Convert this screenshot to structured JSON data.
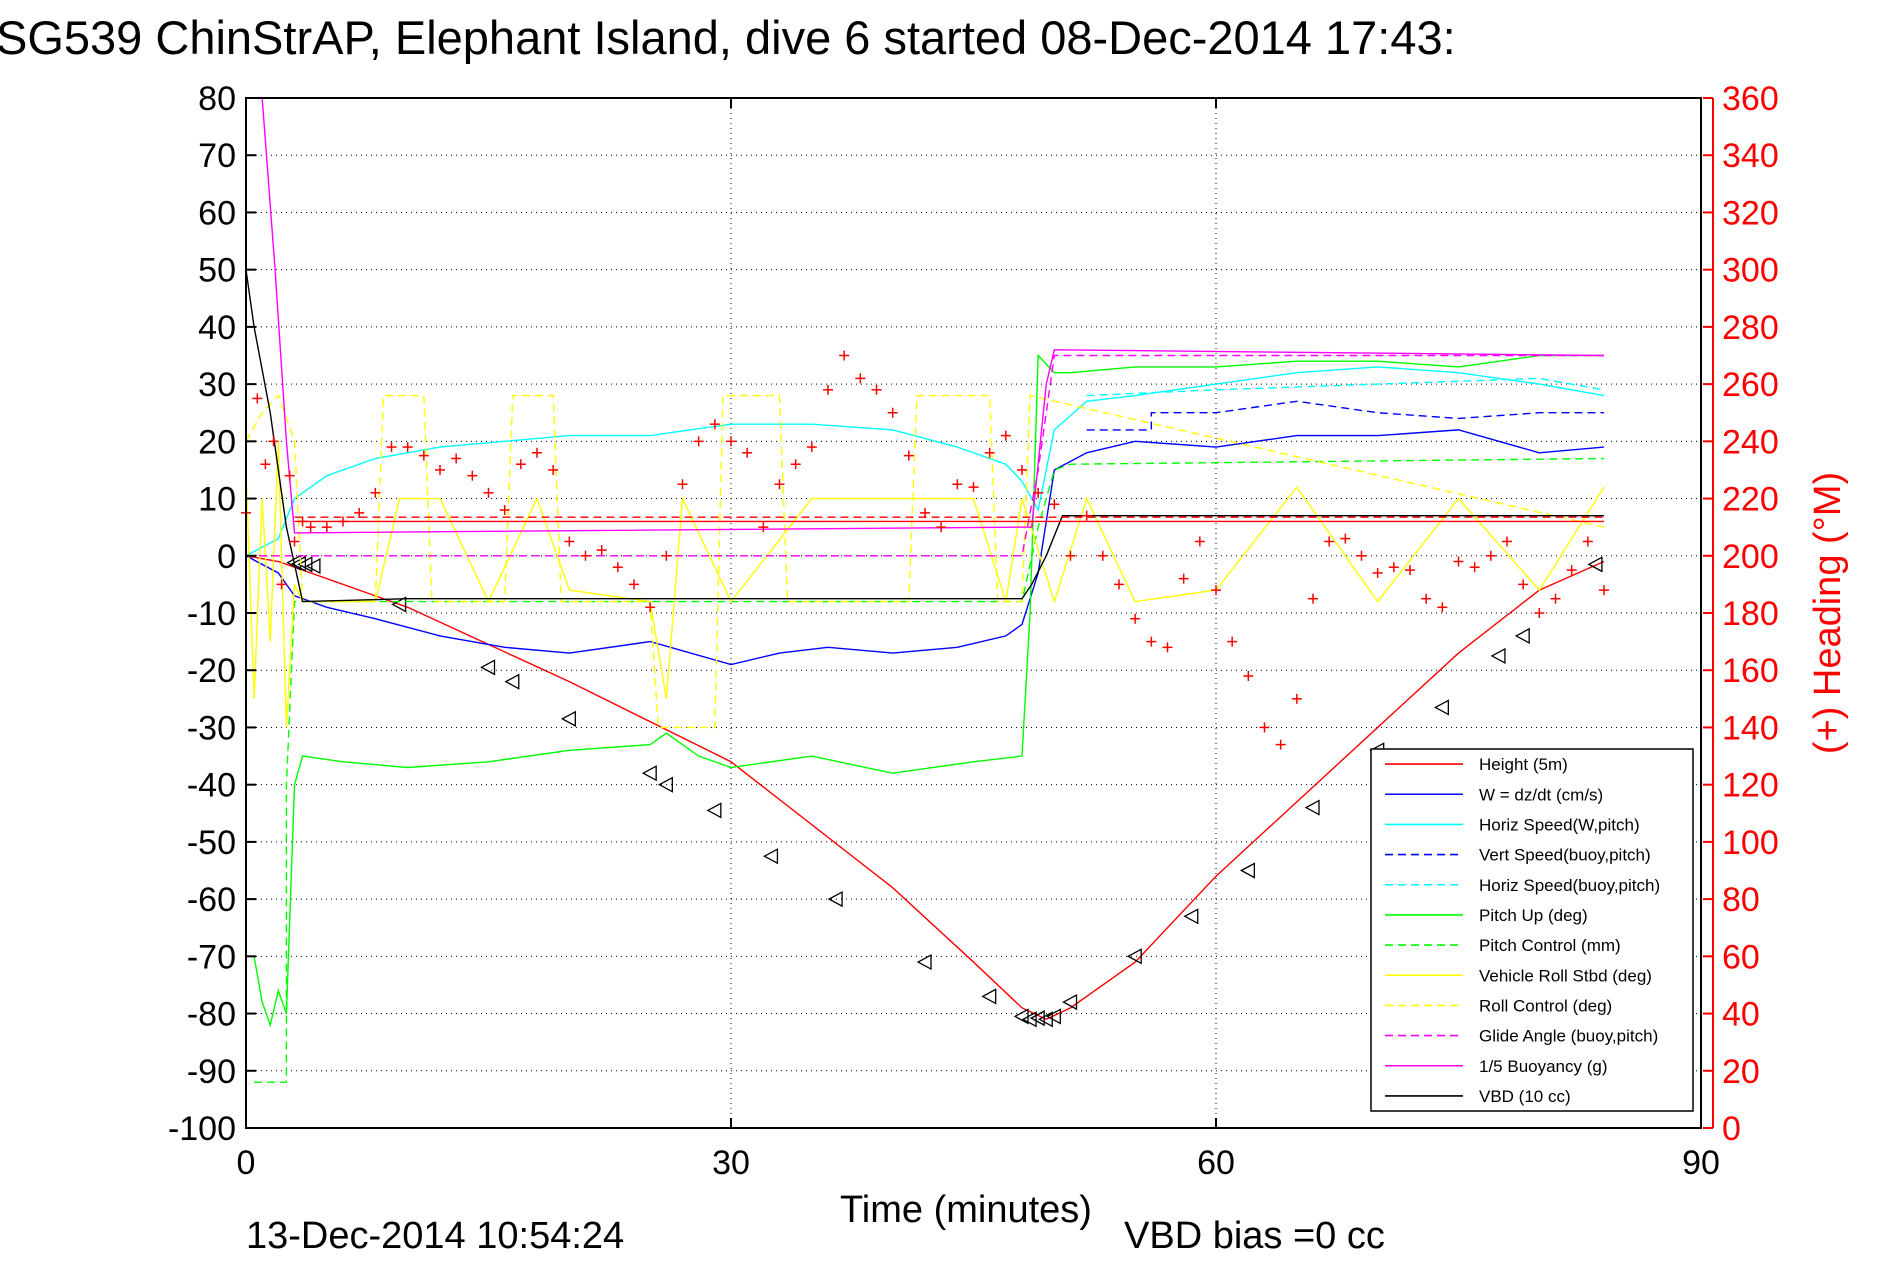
{
  "page": {
    "footer_timestamp": "13-Dec-2014 10:54:24",
    "footer_vbd": "VBD bias =0 cc"
  },
  "chart_data": {
    "type": "line",
    "title": "SG539 ChinStrAP, Elephant Island, dive 6 started 08-Dec-2014 17:43:",
    "xlabel": "Time (minutes)",
    "ylabel_right": "(+) Heading (°M)",
    "xlim": [
      0,
      90
    ],
    "xticks": [
      0,
      30,
      60,
      90
    ],
    "ylim": [
      -100,
      80
    ],
    "yticks": [
      80,
      70,
      60,
      50,
      40,
      30,
      20,
      10,
      0,
      -10,
      -20,
      -30,
      -40,
      -50,
      -60,
      -70,
      -80,
      -90,
      -100
    ],
    "y2lim": [
      0,
      360
    ],
    "y2ticks": [
      360,
      340,
      320,
      300,
      280,
      260,
      240,
      220,
      200,
      180,
      160,
      140,
      120,
      100,
      80,
      60,
      40,
      20,
      0
    ],
    "grid": true,
    "legend_position": "bottom-right",
    "legend": [
      {
        "name": "Height (5m)",
        "color": "#ff0000",
        "dash": "solid"
      },
      {
        "name": "W = dz/dt (cm/s)",
        "color": "#0000ff",
        "dash": "solid"
      },
      {
        "name": "Horiz Speed(W,pitch)",
        "color": "#00ffff",
        "dash": "solid"
      },
      {
        "name": "Vert Speed(buoy,pitch)",
        "color": "#0000ff",
        "dash": "dashed"
      },
      {
        "name": "Horiz Speed(buoy,pitch)",
        "color": "#00ffff",
        "dash": "dashed"
      },
      {
        "name": "Pitch Up (deg)",
        "color": "#00ff00",
        "dash": "solid"
      },
      {
        "name": "Pitch Control (mm)",
        "color": "#00ff00",
        "dash": "dashed"
      },
      {
        "name": "Vehicle Roll Stbd (deg)",
        "color": "#ffff00",
        "dash": "solid"
      },
      {
        "name": "Roll Control (deg)",
        "color": "#ffff00",
        "dash": "dashed"
      },
      {
        "name": "Glide Angle (buoy,pitch)",
        "color": "#ff00ff",
        "dash": "dashed"
      },
      {
        "name": "1/5 Buoyancy (g)",
        "color": "#ff00ff",
        "dash": "solid"
      },
      {
        "name": "VBD (10 cc)",
        "color": "#000000",
        "dash": "solid"
      }
    ],
    "series": [
      {
        "name": "Height (5m)",
        "color": "#ff0000",
        "dash": "solid",
        "x": [
          0,
          1,
          2,
          3,
          10,
          20,
          30,
          40,
          45,
          48,
          49.5,
          51,
          55,
          60,
          65,
          70,
          75,
          80,
          84
        ],
        "y": [
          0,
          -0.5,
          -1,
          -2,
          -9,
          -22,
          -36,
          -58,
          -71,
          -79,
          -81,
          -79,
          -71,
          -56,
          -43,
          -30,
          -17,
          -6,
          -1
        ]
      },
      {
        "name": "Height markers",
        "color": "#000000",
        "marker": "triangle-left",
        "x": [
          3,
          3.3,
          3.7,
          4.2,
          9.5,
          15,
          16.5,
          20,
          25,
          26,
          29,
          32.5,
          36.5,
          42,
          46,
          48,
          48.5,
          49,
          49.5,
          50,
          51,
          55,
          58.5,
          62,
          66,
          70,
          74,
          77.5,
          79,
          83.5
        ],
        "y": [
          -1.2,
          -1.4,
          -1.5,
          -1.8,
          -8.5,
          -19.5,
          -22,
          -28.5,
          -38,
          -40,
          -44.5,
          -52.5,
          -60,
          -71,
          -77,
          -80.5,
          -81,
          -80.8,
          -81,
          -80.5,
          -78,
          -70,
          -63,
          -55,
          -44,
          -34,
          -26.5,
          -17.5,
          -14,
          -1.5
        ]
      },
      {
        "name": "W = dz/dt (cm/s)",
        "color": "#0000ff",
        "dash": "solid",
        "x": [
          0,
          2,
          3,
          5,
          8,
          12,
          16,
          20,
          25,
          30,
          33,
          36,
          40,
          44,
          47,
          48,
          49,
          50,
          52,
          55,
          60,
          65,
          70,
          75,
          80,
          84
        ],
        "y": [
          0,
          -3,
          -7,
          -9,
          -11,
          -14,
          -16,
          -17,
          -15,
          -19,
          -17,
          -16,
          -17,
          -16,
          -14,
          -12,
          -3,
          15,
          18,
          20,
          19,
          21,
          21,
          22,
          18,
          19
        ]
      },
      {
        "name": "Vert Speed(buoy,pitch)",
        "color": "#0000ff",
        "dash": "dashed",
        "x": [
          52,
          56,
          56,
          60,
          65,
          70,
          75,
          80,
          84
        ],
        "y": [
          22,
          22,
          25,
          25,
          27,
          25,
          24,
          25,
          25
        ]
      },
      {
        "name": "Horiz Speed(W,pitch)",
        "color": "#00ffff",
        "dash": "solid",
        "x": [
          0,
          2,
          3,
          5,
          8,
          12,
          16,
          20,
          25,
          30,
          35,
          40,
          44,
          47,
          48,
          49,
          50,
          52,
          55,
          60,
          65,
          70,
          75,
          80,
          84
        ],
        "y": [
          0,
          3,
          10,
          14,
          17,
          19,
          20,
          21,
          21,
          23,
          23,
          22,
          19,
          16,
          13,
          8,
          22,
          27,
          28,
          30,
          32,
          33,
          32,
          30,
          28
        ]
      },
      {
        "name": "Horiz Speed(buoy,pitch)",
        "color": "#00ffff",
        "dash": "dashed",
        "x": [
          52,
          60,
          70,
          80,
          84
        ],
        "y": [
          28,
          29,
          30,
          31,
          29
        ]
      },
      {
        "name": "Pitch Up (deg)",
        "color": "#00ff00",
        "dash": "solid",
        "x": [
          0.5,
          1,
          1.5,
          2,
          2.5,
          3,
          3.5,
          6,
          10,
          15,
          20,
          25,
          26,
          28,
          30,
          35,
          40,
          45,
          48,
          48.5,
          49,
          50,
          51,
          55,
          60,
          65,
          70,
          75,
          80,
          84
        ],
        "y": [
          -70,
          -78,
          -82,
          -76,
          -80,
          -40,
          -35,
          -36,
          -37,
          -36,
          -34,
          -33,
          -31,
          -35,
          -37,
          -35,
          -38,
          -36,
          -35,
          -10,
          35,
          32,
          32,
          33,
          33,
          34,
          34,
          33,
          35,
          35
        ]
      },
      {
        "name": "Pitch Control (mm)",
        "color": "#00ff00",
        "dash": "dashed",
        "x": [
          0.5,
          2.5,
          2.5,
          3,
          3.5,
          10,
          20,
          30,
          40,
          48,
          49,
          50,
          51,
          84
        ],
        "y": [
          -92,
          -92,
          -40,
          -8,
          -8,
          -8,
          -8,
          -8,
          -8,
          -8,
          5,
          15,
          16,
          17
        ]
      },
      {
        "name": "Vehicle Roll Stbd (deg)",
        "color": "#ffff00",
        "dash": "solid",
        "x": [
          0,
          0.5,
          1,
          1.5,
          2,
          2.5,
          3,
          3.5,
          8,
          9.5,
          12,
          15,
          18,
          20,
          25,
          26,
          27,
          30,
          35,
          40,
          45,
          47,
          48,
          50,
          52,
          55,
          60,
          65,
          70,
          75,
          80,
          84
        ],
        "y": [
          15,
          -25,
          10,
          -15,
          20,
          -30,
          -5,
          -8,
          -8,
          10,
          10,
          -8,
          10,
          -6,
          -8,
          -25,
          10,
          -8,
          10,
          10,
          10,
          -8,
          10,
          -8,
          10,
          -8,
          -6,
          12,
          -8,
          10,
          -6,
          12
        ]
      },
      {
        "name": "Roll Control (deg)",
        "color": "#ffff00",
        "dash": "dashed",
        "x": [
          0,
          1,
          2,
          3,
          3.5,
          8,
          8.5,
          11,
          11.5,
          16,
          16.5,
          19,
          19.5,
          25,
          25.5,
          29,
          29.5,
          33,
          33.5,
          41,
          41.5,
          46,
          46.5,
          48,
          48.5,
          84
        ],
        "y": [
          20,
          25,
          28,
          20,
          -8,
          -8,
          28,
          28,
          -8,
          -8,
          28,
          28,
          -8,
          -8,
          -30,
          -30,
          28,
          28,
          -8,
          -8,
          28,
          28,
          -8,
          -8,
          28,
          5
        ]
      },
      {
        "name": "Glide Angle (buoy,pitch)",
        "color": "#ff00ff",
        "dash": "dashed",
        "x": [
          0,
          3,
          48,
          49,
          50,
          84
        ],
        "y": [
          0,
          0,
          0,
          15,
          35,
          35
        ]
      },
      {
        "name": "1/5 Buoyancy (g)",
        "color": "#ff00ff",
        "dash": "solid",
        "x": [
          1,
          1.8,
          2.5,
          3,
          48,
          48.6,
          49.5,
          50,
          84
        ],
        "y": [
          80,
          50,
          20,
          4,
          5,
          5,
          30,
          36,
          35
        ]
      },
      {
        "name": "VBD (10 cc)",
        "color": "#000000",
        "dash": "solid",
        "x": [
          0,
          0.5,
          1.5,
          2.5,
          3.5,
          10,
          20,
          30,
          40,
          48,
          48.6,
          49.5,
          50.5,
          84
        ],
        "y": [
          50,
          40,
          25,
          5,
          -8,
          -7.5,
          -7.5,
          -7.5,
          -7.5,
          -7.5,
          -5,
          0,
          7,
          7
        ]
      },
      {
        "name": "Heading ref (solid)",
        "color": "#ff0000",
        "dash": "solid",
        "axis": "right",
        "x": [
          3,
          84
        ],
        "y": [
          212,
          212
        ]
      },
      {
        "name": "Heading ref (dashed)",
        "color": "#ff0000",
        "dash": "dashed",
        "axis": "right",
        "x": [
          3,
          84
        ],
        "y": [
          213.5,
          213.5
        ]
      },
      {
        "name": "(+) Heading (°M)",
        "color": "#ff0000",
        "marker": "plus",
        "axis": "right",
        "x": [
          0,
          0.7,
          1.2,
          1.7,
          2.2,
          2.7,
          3.0,
          3.5,
          4,
          5,
          6,
          7,
          8,
          9,
          10,
          11,
          12,
          13,
          14,
          15,
          16,
          17,
          18,
          19,
          20,
          21,
          22,
          23,
          24,
          25,
          26,
          27,
          28,
          29,
          30,
          31,
          32,
          33,
          34,
          35,
          36,
          37,
          38,
          39,
          40,
          41,
          42,
          43,
          44,
          45,
          46,
          47,
          48,
          49,
          50,
          51,
          52,
          53,
          54,
          55,
          56,
          57,
          58,
          59,
          60,
          61,
          62,
          63,
          64,
          65,
          66,
          67,
          68,
          69,
          70,
          71,
          72,
          73,
          74,
          75,
          76,
          77,
          78,
          79,
          80,
          81,
          82,
          83,
          84
        ],
        "y": [
          215,
          255,
          232,
          240,
          190,
          228,
          205,
          212,
          210,
          210,
          212,
          215,
          222,
          238,
          238,
          235,
          230,
          234,
          228,
          222,
          216,
          232,
          236,
          230,
          205,
          200,
          202,
          196,
          190,
          182,
          200,
          225,
          240,
          246,
          240,
          236,
          210,
          225,
          232,
          238,
          258,
          270,
          262,
          258,
          250,
          235,
          215,
          210,
          225,
          224,
          236,
          242,
          230,
          222,
          218,
          200,
          214,
          200,
          190,
          178,
          170,
          168,
          192,
          205,
          188,
          170,
          158,
          140,
          134,
          150,
          185,
          205,
          206,
          200,
          194,
          196,
          195,
          185,
          182,
          198,
          196,
          200,
          205,
          190,
          180,
          185,
          195,
          205,
          188
        ]
      }
    ]
  }
}
